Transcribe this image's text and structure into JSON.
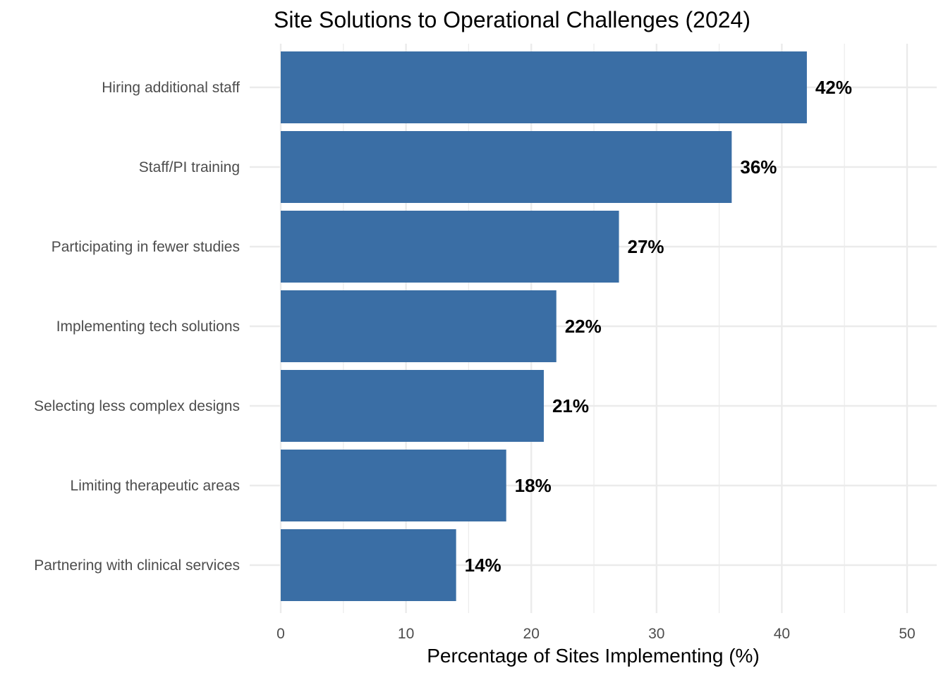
{
  "chart_data": {
    "type": "bar",
    "orientation": "horizontal",
    "title": "Site Solutions to Operational Challenges (2024)",
    "xlabel": "Percentage of Sites Implementing (%)",
    "ylabel": "",
    "categories": [
      "Hiring additional staff",
      "Staff/PI training",
      "Participating in fewer studies",
      "Implementing tech solutions",
      "Selecting less complex designs",
      "Limiting therapeutic areas",
      "Partnering with clinical services"
    ],
    "values": [
      42,
      36,
      27,
      22,
      21,
      18,
      14
    ],
    "data_labels": [
      "42%",
      "36%",
      "27%",
      "22%",
      "21%",
      "18%",
      "14%"
    ],
    "xlim": [
      0,
      50
    ],
    "x_ticks": [
      0,
      10,
      20,
      30,
      40,
      50
    ],
    "x_tick_labels": [
      "0",
      "10",
      "20",
      "30",
      "40",
      "50"
    ],
    "grid": true,
    "bar_color": "#3A6EA5"
  }
}
